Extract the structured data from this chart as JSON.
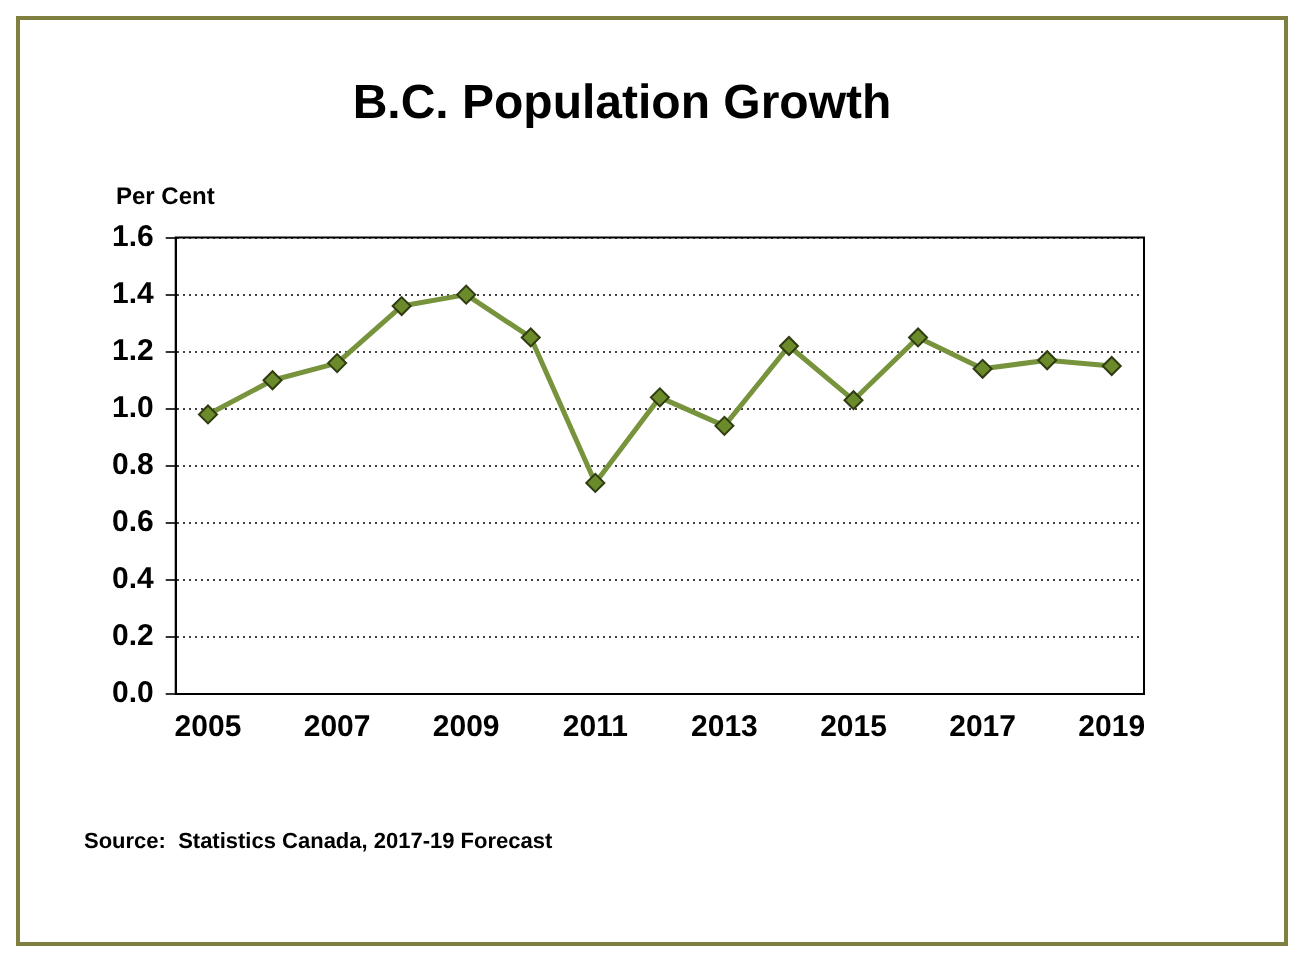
{
  "chart_data": {
    "type": "line",
    "title": "B.C. Population Growth",
    "ylabel": "Per Cent",
    "categories": [
      "2005",
      null,
      "2007",
      null,
      "2009",
      null,
      "2011",
      null,
      "2013",
      null,
      "2015",
      null,
      "2017",
      null,
      "2019"
    ],
    "series": [
      {
        "color": "#77933c",
        "values": [
          0.98,
          1.1,
          1.16,
          1.36,
          1.4,
          1.25,
          0.74,
          1.04,
          0.94,
          1.22,
          1.03,
          1.25,
          1.14,
          1.17,
          1.15
        ]
      }
    ],
    "ylim": [
      0,
      1.6
    ],
    "yticks": [
      {
        "value": 0,
        "label": "0.0"
      },
      {
        "value": 0.2,
        "label": "0.2"
      },
      {
        "value": 0.4,
        "label": "0.4"
      },
      {
        "value": 0.6,
        "label": "0.6"
      },
      {
        "value": 0.8,
        "label": "0.8"
      },
      {
        "value": 1,
        "label": "1.0"
      },
      {
        "value": 1.2,
        "label": "1.2"
      },
      {
        "value": 1.4,
        "label": "1.4"
      },
      {
        "value": 1.6,
        "label": "1.6"
      }
    ],
    "grid": "y",
    "legend": false,
    "marker": "diamond",
    "line_style": "solid",
    "annotations": [
      "Source:  Statistics Canada, 2017-19 Forecast"
    ]
  }
}
